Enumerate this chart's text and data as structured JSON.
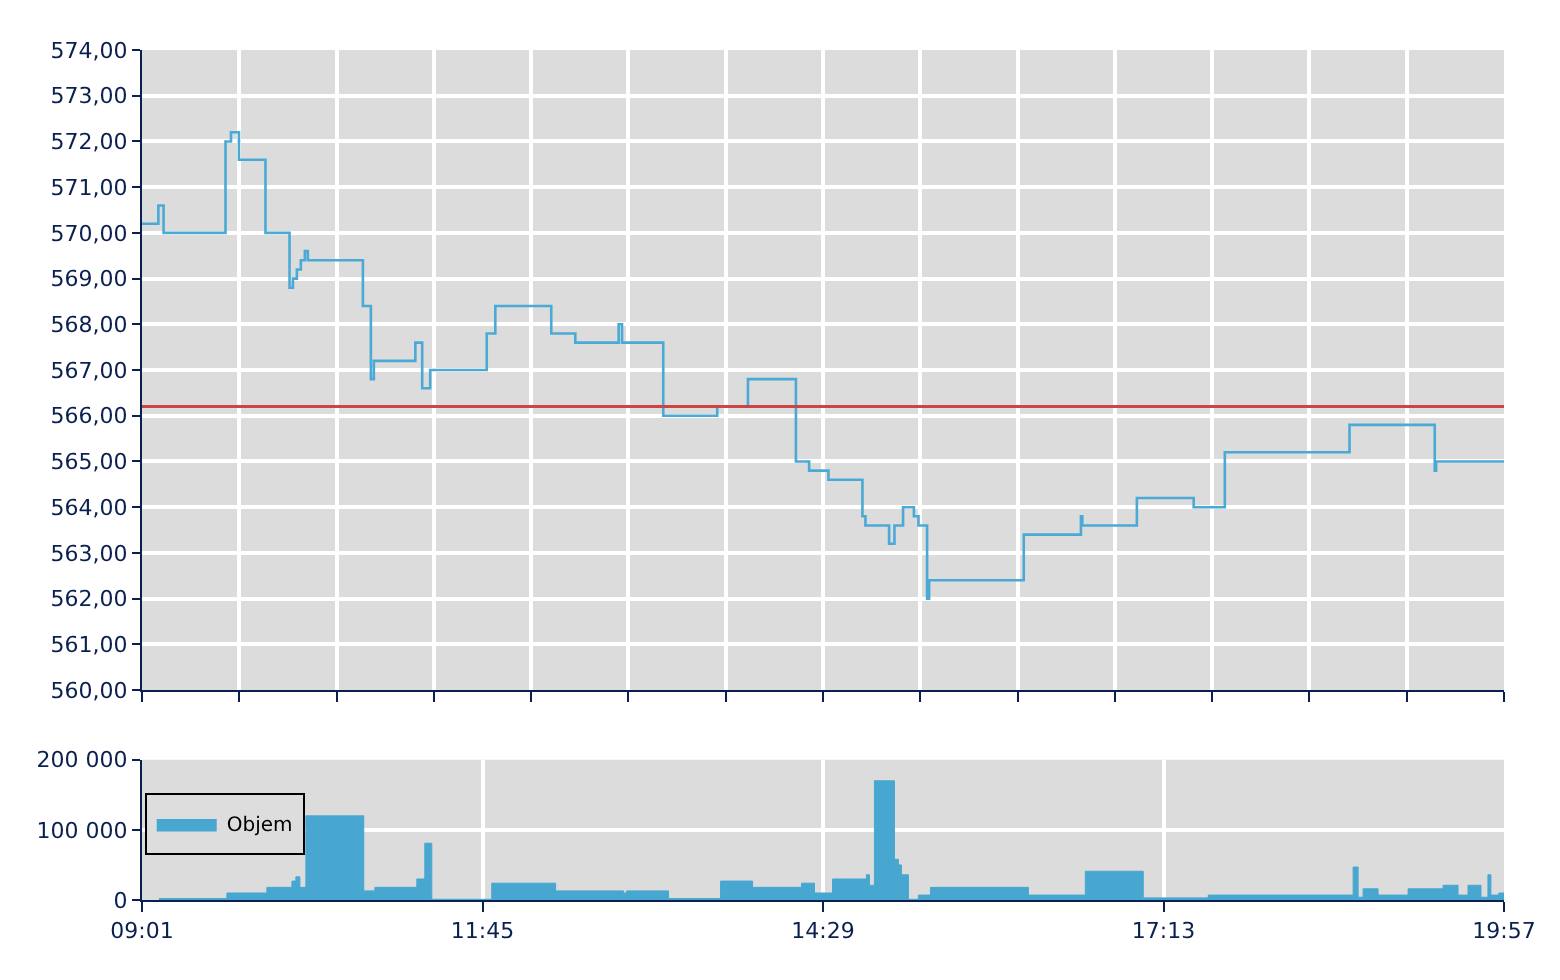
{
  "chart_data": [
    {
      "type": "step",
      "x": [
        9.0167,
        9.148,
        9.19,
        9.687,
        9.731,
        9.795,
        10.008,
        10.201,
        10.228,
        10.26,
        10.292,
        10.324,
        10.348,
        10.79,
        10.854,
        10.878,
        11.211,
        11.266,
        11.33,
        11.784,
        11.853,
        12.302,
        12.495,
        12.843,
        12.87,
        13.201,
        13.634,
        13.881,
        14.266,
        14.372,
        14.527,
        14.8,
        14.824,
        15.014,
        15.057,
        15.126,
        15.213,
        15.25,
        15.319,
        15.335,
        16.095,
        16.554,
        16.565,
        17.003,
        17.459,
        17.709,
        18.71,
        19.394,
        19.405,
        19.95
      ],
      "series": [
        {
          "color": "#4ba9d6",
          "values": [
            570.2,
            570.6,
            570.0,
            572.0,
            572.2,
            571.6,
            570.0,
            568.8,
            569.0,
            569.2,
            569.4,
            569.6,
            569.4,
            568.4,
            566.8,
            567.2,
            567.6,
            566.6,
            567.0,
            567.8,
            568.4,
            567.8,
            567.6,
            568.0,
            567.6,
            566.0,
            566.2,
            566.8,
            565.0,
            564.8,
            564.6,
            563.8,
            563.6,
            563.2,
            563.6,
            564.0,
            563.8,
            563.6,
            562.0,
            562.4,
            563.4,
            563.8,
            563.6,
            564.2,
            564.0,
            565.2,
            565.8,
            564.8,
            565.0,
            565.0
          ]
        }
      ],
      "xlim": [
        9.0167,
        19.95
      ],
      "xticks": [
        {
          "value": 9.017,
          "label": null
        },
        {
          "value": 9.798,
          "label": null
        },
        {
          "value": 10.578,
          "label": null
        },
        {
          "value": 11.359,
          "label": null
        },
        {
          "value": 12.14,
          "label": null
        },
        {
          "value": 12.921,
          "label": null
        },
        {
          "value": 13.702,
          "label": null
        },
        {
          "value": 14.483,
          "label": null
        },
        {
          "value": 15.264,
          "label": null
        },
        {
          "value": 16.045,
          "label": null
        },
        {
          "value": 16.826,
          "label": null
        },
        {
          "value": 17.607,
          "label": null
        },
        {
          "value": 18.388,
          "label": null
        },
        {
          "value": 19.169,
          "label": null
        },
        {
          "value": 19.95,
          "label": null
        }
      ],
      "ylim": [
        560,
        574
      ],
      "yticks": [
        {
          "value": 560,
          "label": "560,00"
        },
        {
          "value": 561,
          "label": "561,00"
        },
        {
          "value": 562,
          "label": "562,00"
        },
        {
          "value": 563,
          "label": "563,00"
        },
        {
          "value": 564,
          "label": "564,00"
        },
        {
          "value": 565,
          "label": "565,00"
        },
        {
          "value": 566,
          "label": "566,00"
        },
        {
          "value": 567,
          "label": "567,00"
        },
        {
          "value": 568,
          "label": "568,00"
        },
        {
          "value": 569,
          "label": "569,00"
        },
        {
          "value": 570,
          "label": "570,00"
        },
        {
          "value": 571,
          "label": "571,00"
        },
        {
          "value": 572,
          "label": "572,00"
        },
        {
          "value": 573,
          "label": "573,00"
        },
        {
          "value": 574,
          "label": "574,00"
        }
      ],
      "ref_lines": [
        {
          "axis": "y",
          "value": 566.2,
          "color": "#cc4444"
        }
      ],
      "grid": true,
      "tick_labels": "y",
      "legend": false
    },
    {
      "type": "area",
      "x": [
        9.153,
        9.698,
        10.019,
        10.22,
        10.252,
        10.284,
        10.332,
        10.797,
        10.886,
        11.223,
        11.287,
        11.343,
        11.824,
        12.337,
        12.883,
        12.907,
        13.244,
        13.661,
        13.918,
        14.311,
        14.415,
        14.56,
        14.832,
        14.856,
        14.896,
        15.057,
        15.089,
        15.113,
        15.169,
        15.249,
        15.346,
        16.132,
        16.589,
        17.054,
        17.576,
        18.739,
        18.779,
        18.819,
        18.939,
        19.18,
        19.461,
        19.581,
        19.661,
        19.765,
        19.821,
        19.845,
        19.909,
        19.95
      ],
      "series": [
        {
          "name": "Objem",
          "color": "#48a7d0",
          "values": [
            2000,
            10000,
            18000,
            27000,
            33000,
            18000,
            120000,
            13000,
            18000,
            30000,
            81000,
            1000,
            24000,
            13000,
            10000,
            13000,
            2000,
            27000,
            18000,
            24000,
            10000,
            30000,
            36000,
            21000,
            170000,
            58000,
            50000,
            36000,
            1000,
            7000,
            18000,
            7000,
            41000,
            3000,
            7000,
            47000,
            4000,
            16000,
            7000,
            16000,
            21000,
            7000,
            21000,
            4000,
            36000,
            7000,
            10000,
            10000
          ]
        }
      ],
      "xlim": [
        9.0167,
        19.95
      ],
      "xticks": [
        {
          "value": 9.0167,
          "label": "09:01"
        },
        {
          "value": 11.75,
          "label": "11:45"
        },
        {
          "value": 14.4833,
          "label": "14:29"
        },
        {
          "value": 17.2167,
          "label": "17:13"
        },
        {
          "value": 19.95,
          "label": "19:57"
        }
      ],
      "ylim": [
        0,
        200000
      ],
      "yticks": [
        {
          "value": 0,
          "label": "0"
        },
        {
          "value": 100000,
          "label": "100 000"
        },
        {
          "value": 200000,
          "label": "200 000"
        }
      ],
      "grid": true,
      "legend": "left"
    }
  ]
}
